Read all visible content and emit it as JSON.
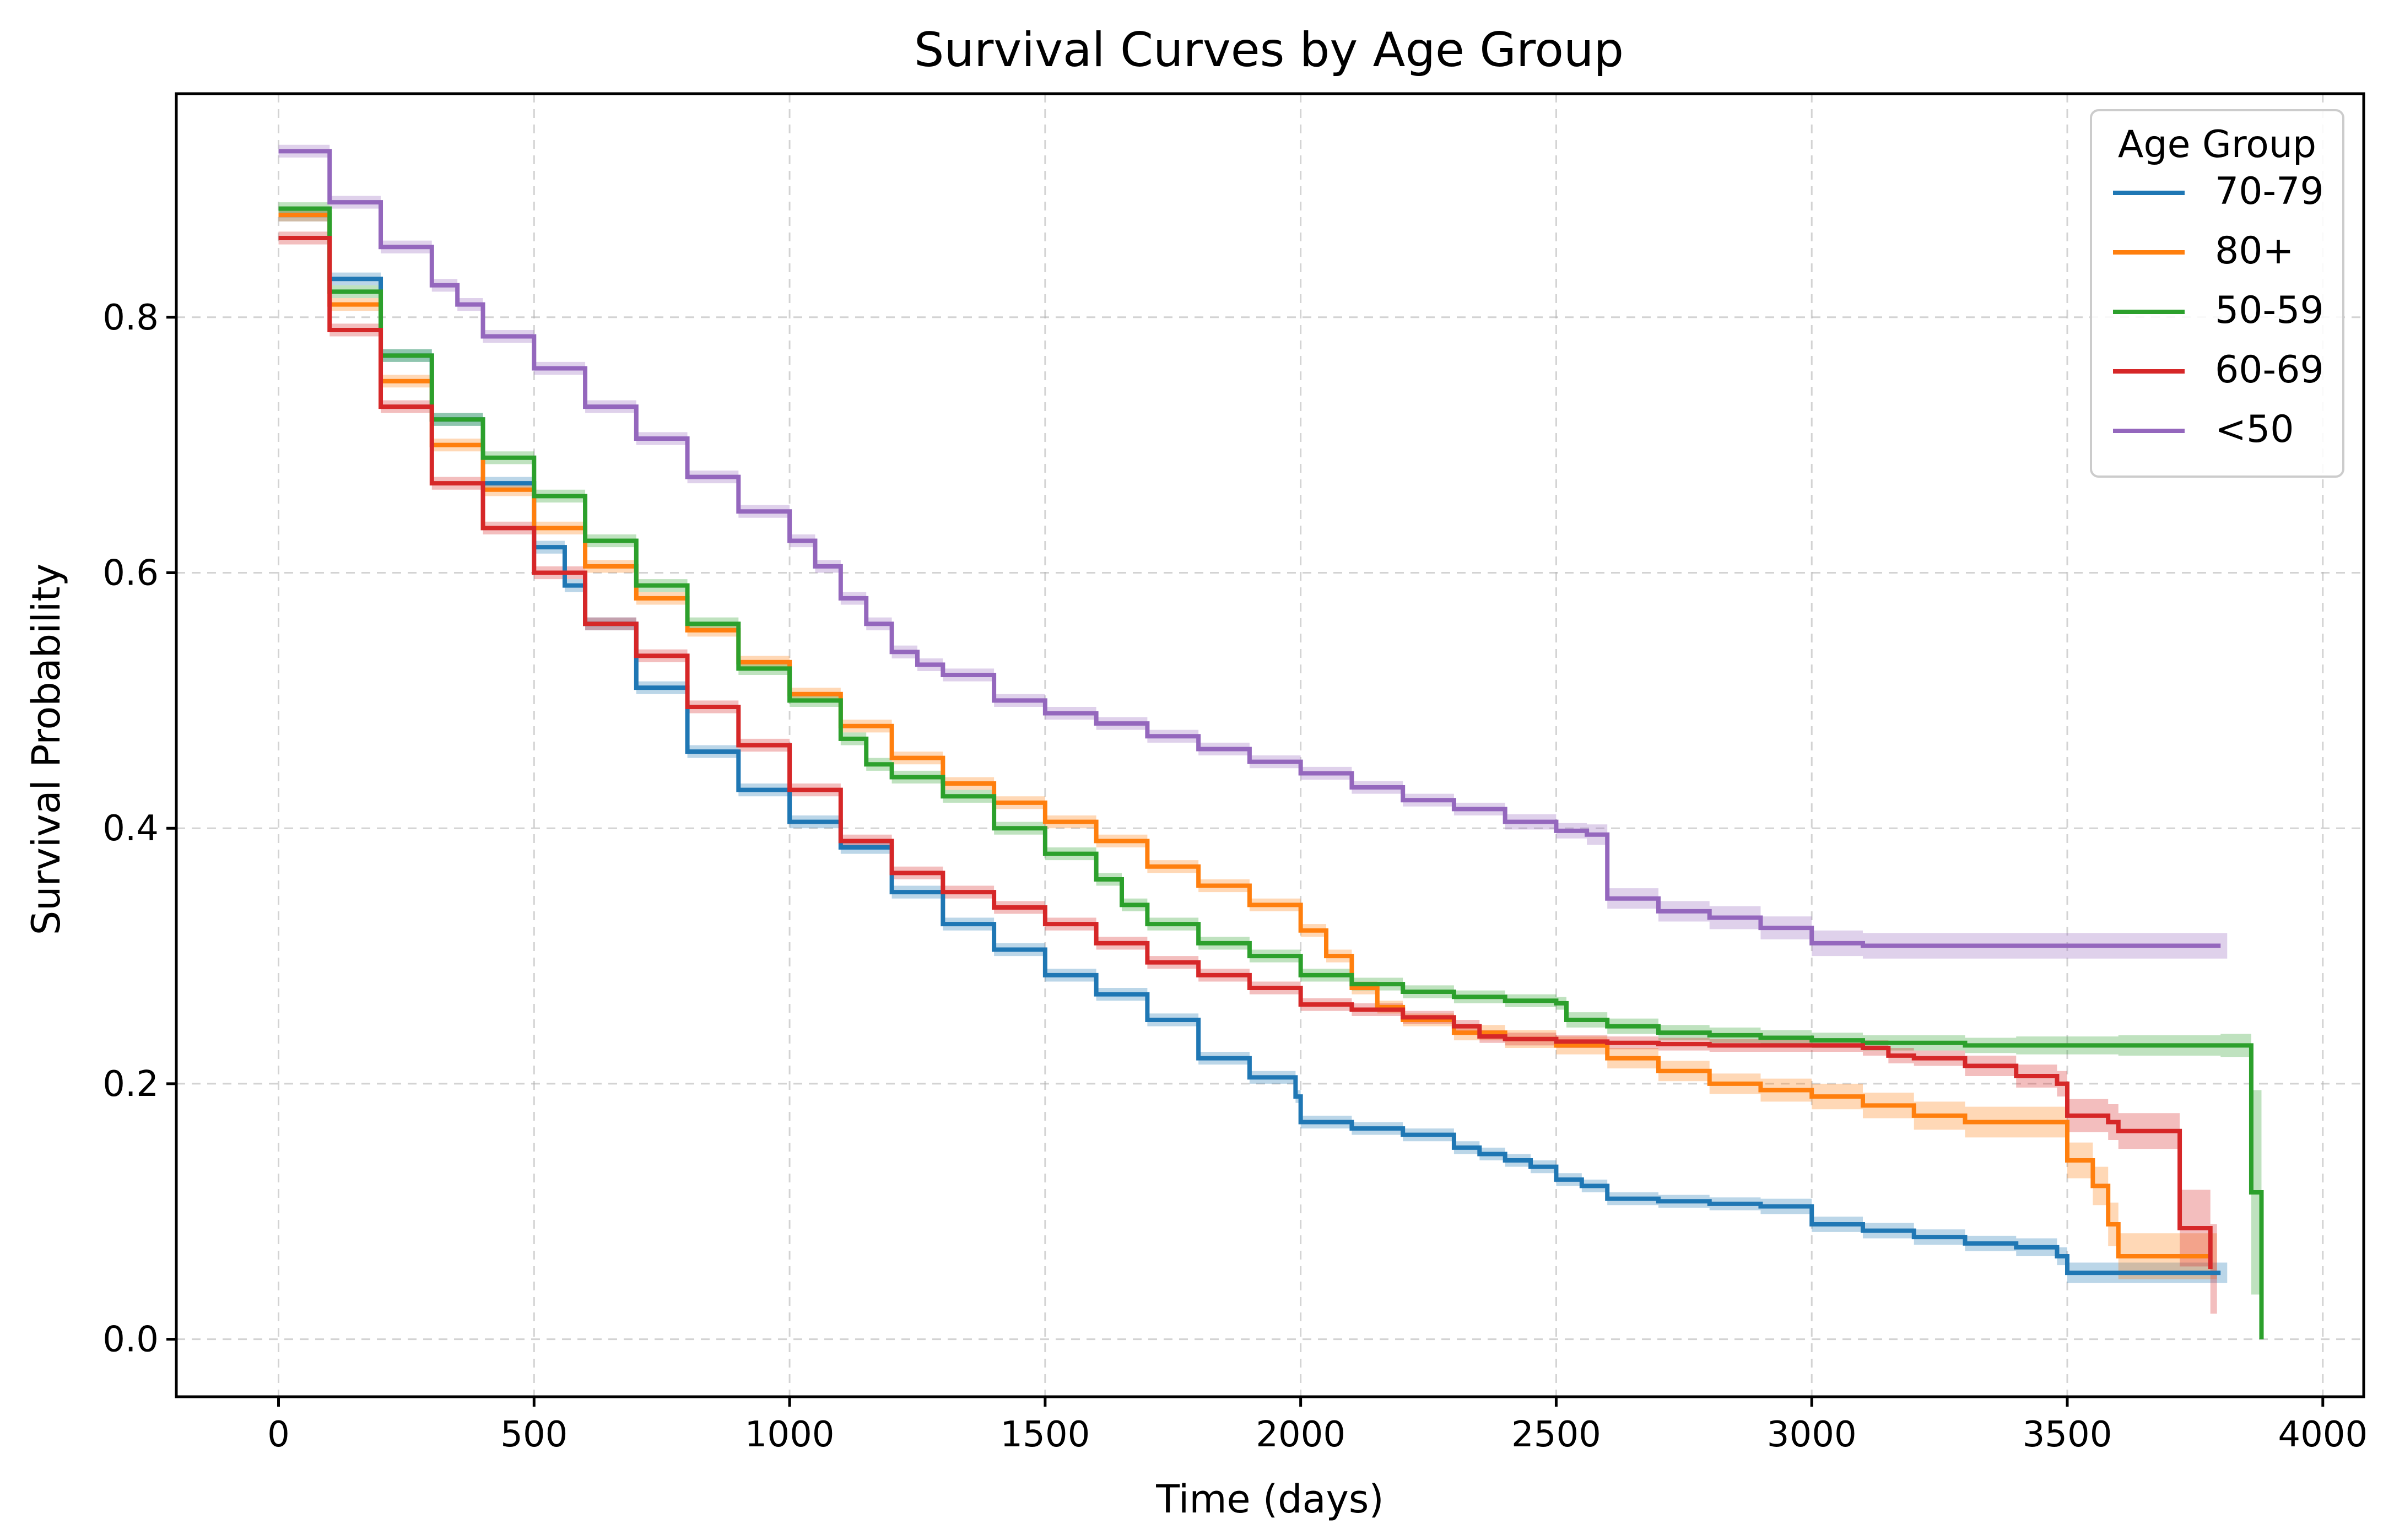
{
  "chart_data": {
    "type": "line",
    "subtype": "step",
    "title": "Survival Curves by Age Group",
    "xlabel": "Time (days)",
    "ylabel": "Survival Probability",
    "xlim": [
      -200,
      4080
    ],
    "ylim": [
      -0.045,
      0.975
    ],
    "xticks": [
      0,
      500,
      1000,
      1500,
      2000,
      2500,
      3000,
      3500,
      4000
    ],
    "yticks": [
      0.0,
      0.2,
      0.4,
      0.6,
      0.8
    ],
    "xtick_labels": [
      "0",
      "500",
      "1000",
      "1500",
      "2000",
      "2500",
      "3000",
      "3500",
      "4000"
    ],
    "ytick_labels": [
      "0.0",
      "0.2",
      "0.4",
      "0.6",
      "0.8"
    ],
    "grid": true,
    "legend": {
      "title": "Age Group",
      "placement": "top-right"
    },
    "series": [
      {
        "name": "70-79",
        "color": "#1f77b4",
        "x": [
          0,
          100,
          200,
          300,
          400,
          500,
          560,
          600,
          700,
          800,
          900,
          1000,
          1100,
          1200,
          1300,
          1400,
          1500,
          1600,
          1700,
          1800,
          1900,
          1990,
          2000,
          2100,
          2200,
          2300,
          2350,
          2400,
          2450,
          2500,
          2550,
          2600,
          2700,
          2800,
          2900,
          3000,
          3100,
          3200,
          3300,
          3400,
          3480,
          3500,
          3600,
          3700,
          3800
        ],
        "y": [
          0.88,
          0.83,
          0.77,
          0.72,
          0.67,
          0.62,
          0.59,
          0.56,
          0.51,
          0.46,
          0.43,
          0.405,
          0.385,
          0.35,
          0.325,
          0.305,
          0.285,
          0.27,
          0.25,
          0.22,
          0.205,
          0.19,
          0.17,
          0.165,
          0.16,
          0.15,
          0.145,
          0.14,
          0.135,
          0.125,
          0.12,
          0.11,
          0.108,
          0.106,
          0.104,
          0.09,
          0.085,
          0.08,
          0.075,
          0.072,
          0.065,
          0.052,
          0.052,
          0.052,
          0.052
        ],
        "ci_halfwidth": [
          0.005,
          0.005,
          0.005,
          0.005,
          0.005,
          0.005,
          0.005,
          0.005,
          0.005,
          0.005,
          0.005,
          0.005,
          0.005,
          0.005,
          0.005,
          0.005,
          0.005,
          0.005,
          0.005,
          0.005,
          0.005,
          0.005,
          0.005,
          0.005,
          0.005,
          0.005,
          0.005,
          0.005,
          0.005,
          0.005,
          0.005,
          0.005,
          0.005,
          0.005,
          0.006,
          0.006,
          0.006,
          0.006,
          0.006,
          0.007,
          0.007,
          0.008,
          0.008,
          0.008,
          0.008
        ]
      },
      {
        "name": "80+",
        "color": "#ff7f0e",
        "x": [
          0,
          100,
          200,
          300,
          400,
          500,
          600,
          700,
          800,
          900,
          1000,
          1100,
          1200,
          1300,
          1400,
          1500,
          1600,
          1700,
          1800,
          1900,
          2000,
          2050,
          2100,
          2150,
          2200,
          2300,
          2400,
          2500,
          2600,
          2700,
          2800,
          2900,
          3000,
          3100,
          3200,
          3300,
          3400,
          3500,
          3550,
          3580,
          3600,
          3700,
          3780
        ],
        "y": [
          0.88,
          0.81,
          0.75,
          0.7,
          0.665,
          0.635,
          0.605,
          0.58,
          0.555,
          0.53,
          0.505,
          0.48,
          0.455,
          0.435,
          0.42,
          0.405,
          0.39,
          0.37,
          0.355,
          0.34,
          0.32,
          0.3,
          0.275,
          0.26,
          0.25,
          0.24,
          0.235,
          0.23,
          0.22,
          0.21,
          0.2,
          0.195,
          0.19,
          0.183,
          0.175,
          0.17,
          0.17,
          0.14,
          0.12,
          0.09,
          0.065,
          0.065,
          0.065
        ],
        "ci_halfwidth": [
          0.005,
          0.005,
          0.005,
          0.005,
          0.005,
          0.005,
          0.005,
          0.005,
          0.005,
          0.005,
          0.005,
          0.005,
          0.005,
          0.005,
          0.005,
          0.005,
          0.005,
          0.005,
          0.005,
          0.005,
          0.005,
          0.005,
          0.005,
          0.005,
          0.005,
          0.006,
          0.007,
          0.007,
          0.008,
          0.008,
          0.008,
          0.009,
          0.01,
          0.01,
          0.011,
          0.012,
          0.012,
          0.014,
          0.015,
          0.017,
          0.018,
          0.018,
          0.018
        ]
      },
      {
        "name": "50-59",
        "color": "#2ca02c",
        "x": [
          0,
          100,
          200,
          300,
          400,
          500,
          600,
          700,
          800,
          900,
          1000,
          1100,
          1150,
          1200,
          1300,
          1400,
          1500,
          1600,
          1650,
          1700,
          1800,
          1900,
          2000,
          2100,
          2200,
          2300,
          2400,
          2500,
          2520,
          2600,
          2700,
          2800,
          2900,
          3000,
          3100,
          3200,
          3300,
          3400,
          3500,
          3600,
          3700,
          3800,
          3860,
          3880
        ],
        "y": [
          0.885,
          0.82,
          0.77,
          0.72,
          0.69,
          0.66,
          0.625,
          0.59,
          0.56,
          0.525,
          0.5,
          0.47,
          0.45,
          0.44,
          0.425,
          0.4,
          0.38,
          0.36,
          0.34,
          0.325,
          0.31,
          0.3,
          0.285,
          0.278,
          0.272,
          0.268,
          0.265,
          0.263,
          0.25,
          0.245,
          0.24,
          0.238,
          0.236,
          0.234,
          0.232,
          0.232,
          0.23,
          0.23,
          0.23,
          0.23,
          0.23,
          0.23,
          0.115,
          0.0
        ],
        "ci_halfwidth": [
          0.005,
          0.005,
          0.005,
          0.005,
          0.005,
          0.005,
          0.005,
          0.005,
          0.005,
          0.005,
          0.005,
          0.005,
          0.005,
          0.005,
          0.005,
          0.005,
          0.005,
          0.005,
          0.005,
          0.005,
          0.005,
          0.005,
          0.005,
          0.005,
          0.005,
          0.005,
          0.005,
          0.005,
          0.006,
          0.006,
          0.006,
          0.006,
          0.006,
          0.006,
          0.006,
          0.006,
          0.006,
          0.007,
          0.007,
          0.008,
          0.008,
          0.009,
          0.08,
          0.0
        ]
      },
      {
        "name": "60-69",
        "color": "#d62728",
        "x": [
          0,
          100,
          200,
          300,
          400,
          500,
          600,
          700,
          800,
          900,
          1000,
          1100,
          1200,
          1300,
          1400,
          1500,
          1600,
          1700,
          1800,
          1900,
          2000,
          2100,
          2200,
          2300,
          2350,
          2400,
          2500,
          2600,
          2700,
          2800,
          2900,
          3000,
          3100,
          3150,
          3200,
          3300,
          3400,
          3480,
          3500,
          3580,
          3600,
          3700,
          3720,
          3750,
          3780
        ],
        "y": [
          0.862,
          0.79,
          0.73,
          0.67,
          0.635,
          0.6,
          0.56,
          0.535,
          0.495,
          0.465,
          0.43,
          0.39,
          0.365,
          0.35,
          0.338,
          0.325,
          0.31,
          0.295,
          0.285,
          0.275,
          0.262,
          0.258,
          0.252,
          0.245,
          0.237,
          0.235,
          0.233,
          0.232,
          0.231,
          0.23,
          0.23,
          0.23,
          0.228,
          0.222,
          0.22,
          0.214,
          0.206,
          0.2,
          0.175,
          0.17,
          0.163,
          0.163,
          0.087,
          0.087,
          0.055
        ],
        "ci_halfwidth": [
          0.005,
          0.005,
          0.005,
          0.005,
          0.005,
          0.005,
          0.005,
          0.005,
          0.005,
          0.005,
          0.005,
          0.005,
          0.005,
          0.005,
          0.005,
          0.005,
          0.005,
          0.005,
          0.005,
          0.005,
          0.005,
          0.005,
          0.005,
          0.005,
          0.005,
          0.005,
          0.005,
          0.005,
          0.005,
          0.005,
          0.005,
          0.005,
          0.006,
          0.006,
          0.006,
          0.008,
          0.009,
          0.01,
          0.013,
          0.014,
          0.014,
          0.014,
          0.03,
          0.03,
          0.035
        ]
      },
      {
        "name": "<50",
        "color": "#9467bd",
        "x": [
          0,
          100,
          200,
          300,
          350,
          400,
          500,
          600,
          700,
          800,
          900,
          1000,
          1050,
          1100,
          1150,
          1200,
          1250,
          1300,
          1400,
          1500,
          1600,
          1700,
          1800,
          1900,
          2000,
          2100,
          2200,
          2300,
          2400,
          2500,
          2560,
          2600,
          2700,
          2800,
          2900,
          3000,
          3100,
          3200,
          3300,
          3400,
          3500,
          3600,
          3700,
          3800
        ],
        "y": [
          0.93,
          0.89,
          0.855,
          0.825,
          0.81,
          0.785,
          0.76,
          0.73,
          0.705,
          0.675,
          0.648,
          0.625,
          0.605,
          0.58,
          0.56,
          0.538,
          0.528,
          0.52,
          0.5,
          0.49,
          0.482,
          0.472,
          0.462,
          0.452,
          0.443,
          0.432,
          0.422,
          0.415,
          0.405,
          0.398,
          0.395,
          0.345,
          0.335,
          0.33,
          0.322,
          0.31,
          0.308,
          0.308,
          0.308,
          0.308,
          0.308,
          0.308,
          0.308,
          0.308
        ],
        "ci_halfwidth": [
          0.005,
          0.005,
          0.005,
          0.005,
          0.005,
          0.005,
          0.005,
          0.005,
          0.005,
          0.005,
          0.005,
          0.005,
          0.005,
          0.005,
          0.005,
          0.005,
          0.005,
          0.005,
          0.005,
          0.005,
          0.005,
          0.005,
          0.005,
          0.005,
          0.005,
          0.005,
          0.005,
          0.005,
          0.006,
          0.006,
          0.008,
          0.008,
          0.008,
          0.009,
          0.009,
          0.01,
          0.01,
          0.01,
          0.01,
          0.01,
          0.01,
          0.01,
          0.01,
          0.01
        ]
      }
    ]
  }
}
